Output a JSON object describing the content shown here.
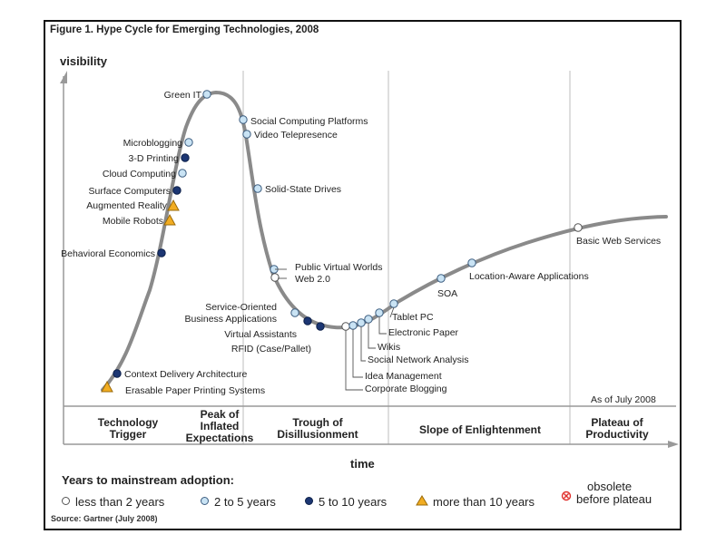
{
  "figure_title": "Figure 1. Hype Cycle for Emerging Technologies, 2008",
  "as_of": "As of July 2008",
  "source": "Source: Gartner (July 2008)",
  "colors": {
    "curve": "#8a8a8a",
    "lt2": "#ffffff",
    "y2to5": "#c9e3f4",
    "y5to10": "#1c3673",
    "gt10": "#f2ad22",
    "obsolete": "#e0302c",
    "divider": "#c8c8c8"
  },
  "chart_data": {
    "type": "line",
    "title": "Hype Cycle for Emerging Technologies, 2008",
    "xlabel": "time",
    "ylabel": "visibility",
    "grid": false,
    "phases": [
      [
        "Technology",
        "Trigger"
      ],
      [
        "Peak of",
        "Inflated",
        "Expectations"
      ],
      [
        "Trough of",
        "Disillusionment"
      ],
      [
        "Slope of Enlightenment"
      ],
      [
        "Plateau of",
        "Productivity"
      ]
    ],
    "technologies": [
      {
        "name": "Green IT",
        "phase": "Peak of Inflated Expectations",
        "adoption": "2 to 5 years"
      },
      {
        "name": "Social Computing Platforms",
        "phase": "Peak of Inflated Expectations",
        "adoption": "2 to 5 years"
      },
      {
        "name": "Video Telepresence",
        "phase": "Peak of Inflated Expectations",
        "adoption": "2 to 5 years"
      },
      {
        "name": "Microblogging",
        "phase": "Technology Trigger",
        "adoption": "2 to 5 years"
      },
      {
        "name": "3-D Printing",
        "phase": "Technology Trigger",
        "adoption": "5 to 10 years"
      },
      {
        "name": "Cloud Computing",
        "phase": "Technology Trigger",
        "adoption": "2 to 5 years"
      },
      {
        "name": "Surface Computers",
        "phase": "Technology Trigger",
        "adoption": "5 to 10 years"
      },
      {
        "name": "Augmented Reality",
        "phase": "Technology Trigger",
        "adoption": "more than 10 years"
      },
      {
        "name": "Mobile Robots",
        "phase": "Technology Trigger",
        "adoption": "more than 10 years"
      },
      {
        "name": "Behavioral Economics",
        "phase": "Technology Trigger",
        "adoption": "5 to 10 years"
      },
      {
        "name": "Context Delivery Architecture",
        "phase": "Technology Trigger",
        "adoption": "5 to 10 years"
      },
      {
        "name": "Erasable Paper Printing Systems",
        "phase": "Technology Trigger",
        "adoption": "more than 10 years"
      },
      {
        "name": "Solid-State Drives",
        "phase": "Trough of Disillusionment",
        "adoption": "2 to 5 years"
      },
      {
        "name": "Public Virtual Worlds",
        "phase": "Trough of Disillusionment",
        "adoption": "2 to 5 years"
      },
      {
        "name": "Web 2.0",
        "phase": "Trough of Disillusionment",
        "adoption": "less than 2 years"
      },
      {
        "name": "Service-Oriented Business Applications",
        "phase": "Trough of Disillusionment",
        "adoption": "2 to 5 years"
      },
      {
        "name": "Virtual Assistants",
        "phase": "Trough of Disillusionment",
        "adoption": "5 to 10 years"
      },
      {
        "name": "RFID (Case/Pallet)",
        "phase": "Trough of Disillusionment",
        "adoption": "5 to 10 years"
      },
      {
        "name": "Corporate Blogging",
        "phase": "Trough of Disillusionment",
        "adoption": "less than 2 years"
      },
      {
        "name": "Idea Management",
        "phase": "Trough of Disillusionment",
        "adoption": "2 to 5 years"
      },
      {
        "name": "Social Network Analysis",
        "phase": "Trough of Disillusionment",
        "adoption": "2 to 5 years"
      },
      {
        "name": "Wikis",
        "phase": "Trough of Disillusionment",
        "adoption": "2 to 5 years"
      },
      {
        "name": "Electronic Paper",
        "phase": "Trough of Disillusionment",
        "adoption": "2 to 5 years"
      },
      {
        "name": "Tablet PC",
        "phase": "Slope of Enlightenment",
        "adoption": "2 to 5 years"
      },
      {
        "name": "SOA",
        "phase": "Slope of Enlightenment",
        "adoption": "2 to 5 years"
      },
      {
        "name": "Location-Aware Applications",
        "phase": "Slope of Enlightenment",
        "adoption": "2 to 5 years"
      },
      {
        "name": "Basic Web Services",
        "phase": "Slope of Enlightenment",
        "adoption": "less than 2 years"
      }
    ]
  },
  "legend": {
    "title": "Years to mainstream adoption:",
    "items": [
      {
        "key": "lt2",
        "label": "less than 2 years"
      },
      {
        "key": "y2to5",
        "label": "2 to 5 years"
      },
      {
        "key": "y5to10",
        "label": "5 to 10 years"
      },
      {
        "key": "gt10",
        "label": "more than 10 years"
      },
      {
        "key": "obsolete",
        "label_line1": "obsolete",
        "label_line2": "before plateau"
      }
    ]
  }
}
